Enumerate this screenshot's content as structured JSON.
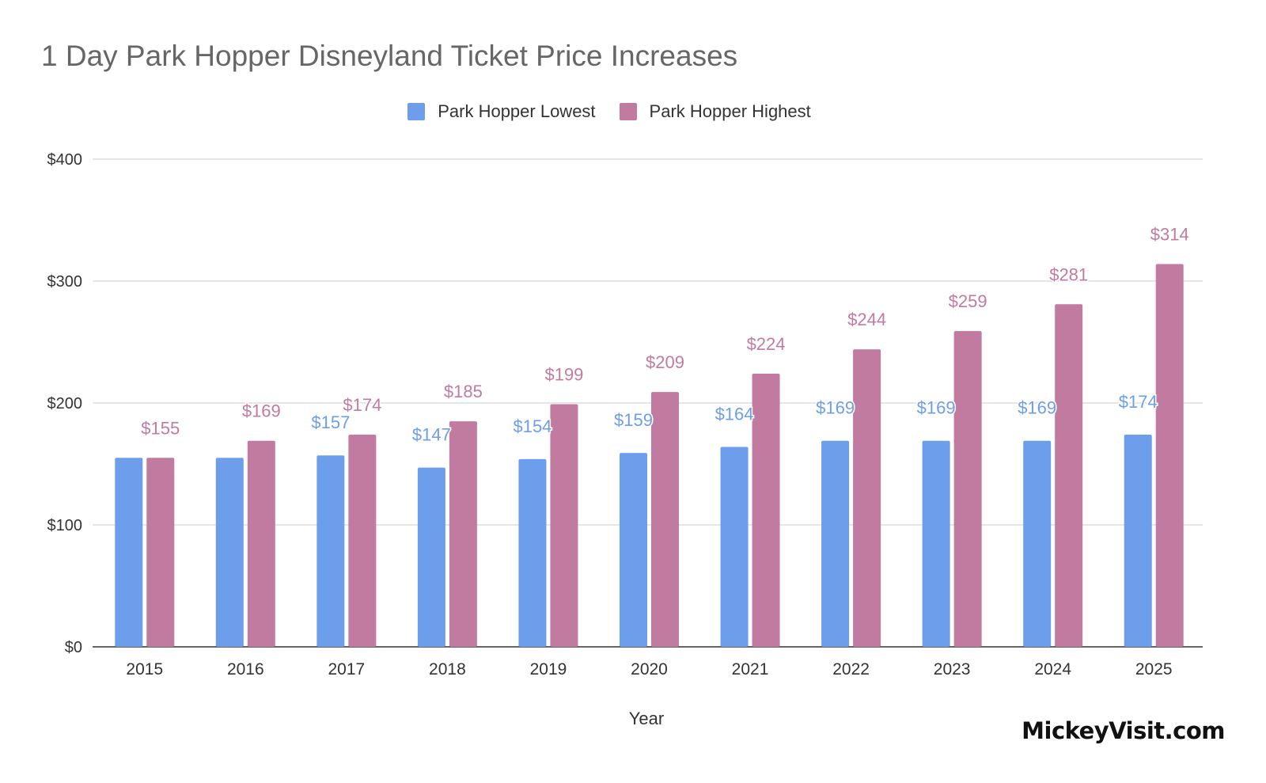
{
  "chart_data": {
    "type": "bar",
    "title": "1 Day Park Hopper Disneyland Ticket Price Increases",
    "xlabel": "Year",
    "ylabel": "",
    "ylim": [
      0,
      400
    ],
    "yticks": [
      0,
      100,
      200,
      300,
      400
    ],
    "ytick_labels": [
      "$0",
      "$100",
      "$200",
      "$300",
      "$400"
    ],
    "grid": true,
    "legend_position": "top-center",
    "categories": [
      "2015",
      "2016",
      "2017",
      "2018",
      "2019",
      "2020",
      "2021",
      "2022",
      "2023",
      "2024",
      "2025"
    ],
    "series": [
      {
        "name": "Park Hopper Lowest",
        "color": "#6d9eeb",
        "values": [
          155,
          155,
          157,
          147,
          154,
          159,
          164,
          169,
          169,
          169,
          174
        ],
        "data_labels": [
          "",
          "",
          "$157",
          "$147",
          "$154",
          "$159",
          "$164",
          "$169",
          "$169",
          "$169",
          "$174"
        ]
      },
      {
        "name": "Park Hopper Highest",
        "color": "#c27ba0",
        "values": [
          155,
          169,
          174,
          185,
          199,
          209,
          224,
          244,
          259,
          281,
          314
        ],
        "data_labels": [
          "$155",
          "$169",
          "$174",
          "$185",
          "$199",
          "$209",
          "$224",
          "$244",
          "$259",
          "$281",
          "$314"
        ]
      }
    ]
  },
  "watermark": "MickeyVisit.com"
}
